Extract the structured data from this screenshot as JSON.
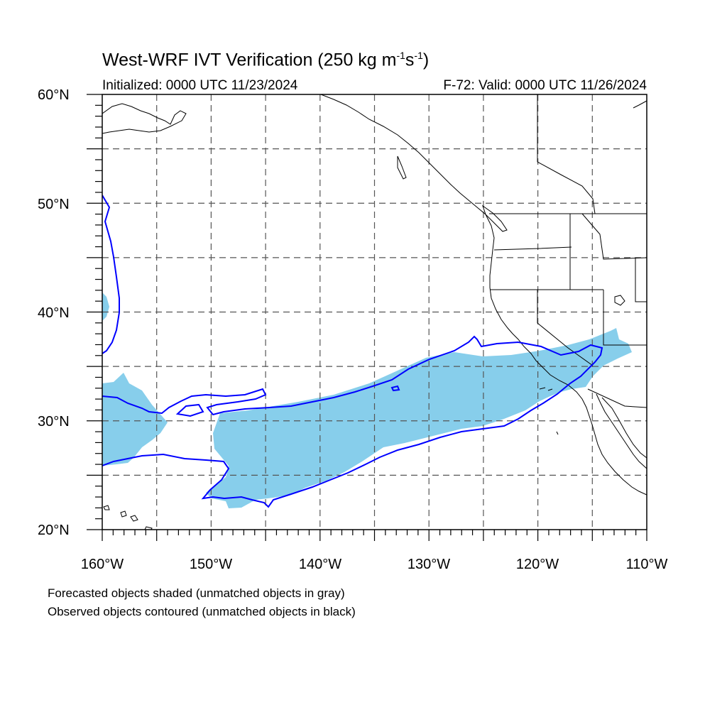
{
  "header": {
    "title_main": "West-WRF IVT Verification (250 kg m",
    "title_sup1": "-1",
    "title_mid": "s",
    "title_sup2": "-1",
    "title_end": ")",
    "initialized": "Initialized: 0000 UTC 11/23/2024",
    "valid": "F-72: Valid: 0000 UTC 11/26/2024"
  },
  "map": {
    "lat_labels": [
      "60°N",
      "50°N",
      "40°N",
      "30°N",
      "20°N"
    ],
    "lon_labels": [
      "160°W",
      "150°W",
      "140°W",
      "130°W",
      "120°W",
      "110°W"
    ],
    "extent": {
      "lon_min": -160,
      "lon_max": -110,
      "lat_min": 20,
      "lat_max": 60
    },
    "grid": true,
    "colors": {
      "forecast_fill": "#87ceeb",
      "observed_contour": "#0000ff",
      "coastline": "#000000",
      "grid": "#555555"
    }
  },
  "legend_notes": [
    "Forecasted objects shaded (unmatched objects in gray)",
    "Observed objects contoured (unmatched objects in black)"
  ]
}
